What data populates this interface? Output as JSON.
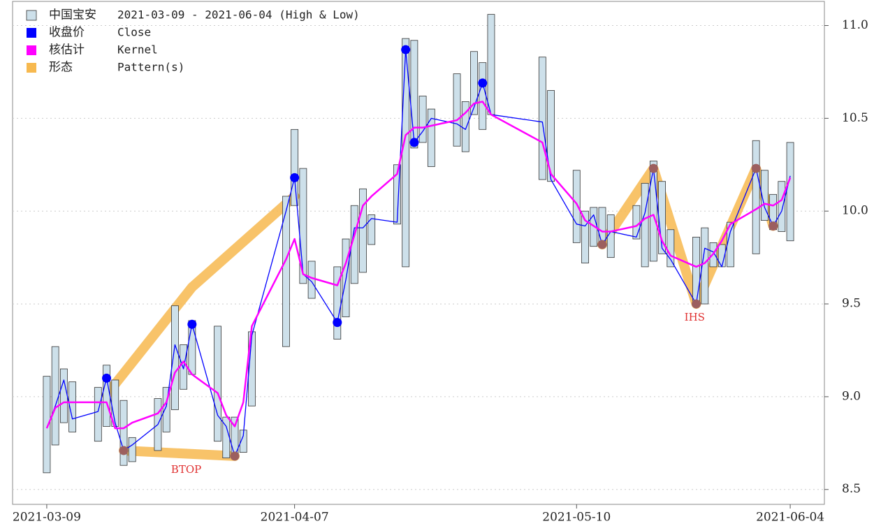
{
  "chart_data": {
    "type": "hilo",
    "x": [
      "2021-03-09",
      "2021-03-10",
      "2021-03-11",
      "2021-03-12",
      "2021-03-15",
      "2021-03-16",
      "2021-03-17",
      "2021-03-18",
      "2021-03-19",
      "2021-03-22",
      "2021-03-23",
      "2021-03-24",
      "2021-03-25",
      "2021-03-26",
      "2021-03-29",
      "2021-03-30",
      "2021-03-31",
      "2021-04-01",
      "2021-04-02",
      "2021-04-06",
      "2021-04-07",
      "2021-04-08",
      "2021-04-09",
      "2021-04-12",
      "2021-04-13",
      "2021-04-14",
      "2021-04-15",
      "2021-04-16",
      "2021-04-19",
      "2021-04-20",
      "2021-04-21",
      "2021-04-22",
      "2021-04-23",
      "2021-04-26",
      "2021-04-27",
      "2021-04-28",
      "2021-04-29",
      "2021-04-30",
      "2021-05-06",
      "2021-05-07",
      "2021-05-10",
      "2021-05-11",
      "2021-05-12",
      "2021-05-13",
      "2021-05-14",
      "2021-05-17",
      "2021-05-18",
      "2021-05-19",
      "2021-05-20",
      "2021-05-21",
      "2021-05-24",
      "2021-05-25",
      "2021-05-26",
      "2021-05-27",
      "2021-05-28",
      "2021-05-31",
      "2021-06-01",
      "2021-06-02",
      "2021-06-03",
      "2021-06-04"
    ],
    "series": [
      {
        "name": "中国宝安",
        "label": "2021-03-09 - 2021-06-04 (High & Low)",
        "color": "#cde0ea",
        "high": [
          9.11,
          9.27,
          9.15,
          9.08,
          9.05,
          9.17,
          9.09,
          8.98,
          8.78,
          8.99,
          9.05,
          9.49,
          9.28,
          9.41,
          9.38,
          8.89,
          8.89,
          8.82,
          9.35,
          10.08,
          10.44,
          10.23,
          9.73,
          9.7,
          9.85,
          10.03,
          10.12,
          9.98,
          10.25,
          10.93,
          10.92,
          10.62,
          10.55,
          10.74,
          10.59,
          10.86,
          10.8,
          11.06,
          10.83,
          10.65,
          10.22,
          10.0,
          10.02,
          10.02,
          9.98,
          10.03,
          10.15,
          10.27,
          10.16,
          9.9,
          9.86,
          9.91,
          9.83,
          9.82,
          9.94,
          10.38,
          10.22,
          10.09,
          10.16,
          10.37
        ],
        "low": [
          8.59,
          8.74,
          8.86,
          8.81,
          8.76,
          8.84,
          8.84,
          8.63,
          8.65,
          8.71,
          8.81,
          8.93,
          9.04,
          9.12,
          8.76,
          8.67,
          8.67,
          8.7,
          8.95,
          9.27,
          10.03,
          9.61,
          9.53,
          9.31,
          9.43,
          9.61,
          9.67,
          9.82,
          9.93,
          9.7,
          10.34,
          10.37,
          10.24,
          10.35,
          10.32,
          10.52,
          10.44,
          10.52,
          10.17,
          10.16,
          9.83,
          9.72,
          9.81,
          9.81,
          9.75,
          9.85,
          9.7,
          9.73,
          9.77,
          9.7,
          9.5,
          9.5,
          9.7,
          9.7,
          9.7,
          9.77,
          9.95,
          9.9,
          9.89,
          9.84
        ]
      },
      {
        "name": "收盘价",
        "label": "Close",
        "color": "#0000ff",
        "values": [
          8.83,
          8.95,
          9.09,
          8.88,
          8.92,
          9.1,
          8.86,
          8.71,
          8.74,
          8.85,
          8.95,
          9.28,
          9.15,
          9.39,
          8.9,
          8.84,
          8.68,
          8.79,
          9.33,
          10.0,
          10.18,
          9.66,
          9.62,
          9.4,
          9.63,
          9.91,
          9.91,
          9.96,
          9.94,
          10.87,
          10.37,
          10.43,
          10.5,
          10.47,
          10.44,
          10.56,
          10.69,
          10.52,
          10.48,
          10.17,
          9.93,
          9.92,
          9.98,
          9.82,
          9.89,
          9.86,
          9.99,
          10.23,
          9.8,
          9.74,
          9.5,
          9.8,
          9.78,
          9.7,
          9.89,
          10.23,
          10.02,
          9.92,
          10.0,
          10.19
        ]
      },
      {
        "name": "核估计",
        "label": "Kernel",
        "color": "#ff00ff",
        "values": [
          8.83,
          8.94,
          8.97,
          8.97,
          8.97,
          8.97,
          8.83,
          8.83,
          8.86,
          8.91,
          8.97,
          9.13,
          9.19,
          9.12,
          9.02,
          8.9,
          8.84,
          8.97,
          9.38,
          9.74,
          9.85,
          9.66,
          9.64,
          9.6,
          9.72,
          9.87,
          10.03,
          10.08,
          10.2,
          10.41,
          10.45,
          10.45,
          10.46,
          10.49,
          10.53,
          10.58,
          10.59,
          10.52,
          10.37,
          10.2,
          10.04,
          9.95,
          9.92,
          9.89,
          9.89,
          9.92,
          9.96,
          9.98,
          9.84,
          9.76,
          9.7,
          9.72,
          9.77,
          9.84,
          9.93,
          10.01,
          10.04,
          10.03,
          10.06,
          10.18
        ]
      },
      {
        "name": "形态",
        "label": "Pattern(s)",
        "color": "#f7b94f"
      }
    ],
    "extrema": {
      "color": "#0000ff",
      "x": [
        "2021-03-16",
        "2021-03-26",
        "2021-04-07",
        "2021-04-12",
        "2021-04-20",
        "2021-04-21",
        "2021-04-29"
      ],
      "values": [
        9.1,
        9.39,
        10.18,
        9.4,
        10.87,
        10.37,
        10.69
      ]
    },
    "patterns": [
      {
        "name": "BTOP",
        "lines": [
          {
            "x": [
              "2021-03-16",
              "2021-03-26",
              "2021-04-07"
            ],
            "values": [
              9.01,
              9.59,
              10.08
            ],
            "dots": false
          },
          {
            "x": [
              "2021-03-18",
              "2021-03-31"
            ],
            "values": [
              8.71,
              8.68
            ],
            "dots": true
          }
        ]
      },
      {
        "name": "IHS",
        "lines": [
          {
            "x": [
              "2021-05-13",
              "2021-05-19",
              "2021-05-24",
              "2021-05-31",
              "2021-06-02"
            ],
            "values": [
              9.82,
              10.23,
              9.5,
              10.23,
              9.92
            ],
            "dots": true
          }
        ]
      }
    ],
    "pattern_dot_color": "#9c5f5f",
    "pattern_label_color": "#e03030",
    "xlim": [
      "2021-03-05",
      "2021-06-08"
    ],
    "xticks": [
      "2021-03-09",
      "2021-04-07",
      "2021-05-10",
      "2021-06-04"
    ],
    "ylim": [
      8.42,
      11.13
    ],
    "yticks": [
      8.5,
      {
        "value": 9.0,
        "label": "9.0"
      },
      9.5,
      {
        "value": 10.0,
        "label": "10.0"
      },
      10.5,
      {
        "value": 11.0,
        "label": "11.0"
      }
    ],
    "grid": true
  }
}
